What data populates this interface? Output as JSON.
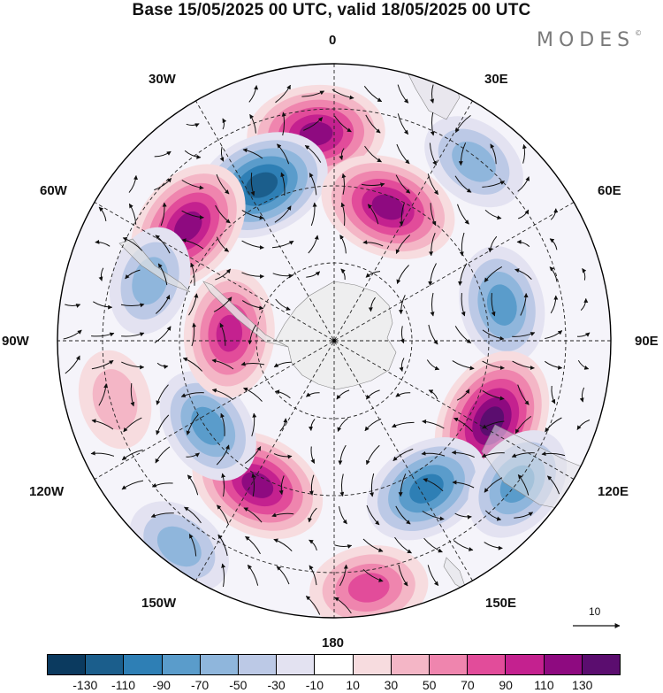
{
  "title": "Base 15/05/2025 00 UTC, valid 18/05/2025 00 UTC",
  "brand": "MODES",
  "brand_mark": "©",
  "longitude_labels": {
    "lon_0": "0",
    "lon_30e": "30E",
    "lon_60e": "60E",
    "lon_90e": "90E",
    "lon_120e": "120E",
    "lon_150e": "150E",
    "lon_180": "180",
    "lon_150w": "150W",
    "lon_120w": "120W",
    "lon_90w": "90W",
    "lon_60w": "60W",
    "lon_30w": "30W"
  },
  "reference_vector": "10",
  "colorbar": {
    "colors": [
      "#0b3a5f",
      "#1b5e8c",
      "#2e7fb5",
      "#5a9ccb",
      "#8fb6dc",
      "#bcc9e6",
      "#e3e2f1",
      "#ffffff",
      "#f7dcdf",
      "#f4b6c6",
      "#ef85ae",
      "#e24c9a",
      "#c4218f",
      "#8e0a80",
      "#5b0d6f"
    ],
    "tick_labels": [
      "-130",
      "-110",
      "-90",
      "-70",
      "-50",
      "-30",
      "-10",
      "10",
      "30",
      "50",
      "70",
      "90",
      "110",
      "130"
    ]
  },
  "anomaly_centers": [
    {
      "sign": "positive",
      "strength": 110,
      "direction_deg": 355,
      "radius_fraction": 0.75
    },
    {
      "sign": "negative",
      "strength": -110,
      "direction_deg": 335,
      "radius_fraction": 0.62
    },
    {
      "sign": "positive",
      "strength": 110,
      "direction_deg": 308,
      "radius_fraction": 0.67
    },
    {
      "sign": "positive",
      "strength": 100,
      "direction_deg": 22,
      "radius_fraction": 0.52
    },
    {
      "sign": "negative",
      "strength": -50,
      "direction_deg": 38,
      "radius_fraction": 0.82
    },
    {
      "sign": "negative",
      "strength": -70,
      "direction_deg": 78,
      "radius_fraction": 0.62
    },
    {
      "sign": "positive",
      "strength": 130,
      "direction_deg": 117,
      "radius_fraction": 0.64
    },
    {
      "sign": "negative",
      "strength": -90,
      "direction_deg": 148,
      "radius_fraction": 0.63
    },
    {
      "sign": "negative",
      "strength": -70,
      "direction_deg": 128,
      "radius_fraction": 0.84
    },
    {
      "sign": "positive",
      "strength": 70,
      "direction_deg": 172,
      "radius_fraction": 0.9
    },
    {
      "sign": "positive",
      "strength": 110,
      "direction_deg": 208,
      "radius_fraction": 0.59
    },
    {
      "sign": "negative",
      "strength": -50,
      "direction_deg": 217,
      "radius_fraction": 0.93
    },
    {
      "sign": "negative",
      "strength": -70,
      "direction_deg": 236,
      "radius_fraction": 0.55
    },
    {
      "sign": "positive",
      "strength": 90,
      "direction_deg": 274,
      "radius_fraction": 0.38
    },
    {
      "sign": "negative",
      "strength": -50,
      "direction_deg": 288,
      "radius_fraction": 0.7
    },
    {
      "sign": "positive",
      "strength": 30,
      "direction_deg": 255,
      "radius_fraction": 0.82
    }
  ]
}
